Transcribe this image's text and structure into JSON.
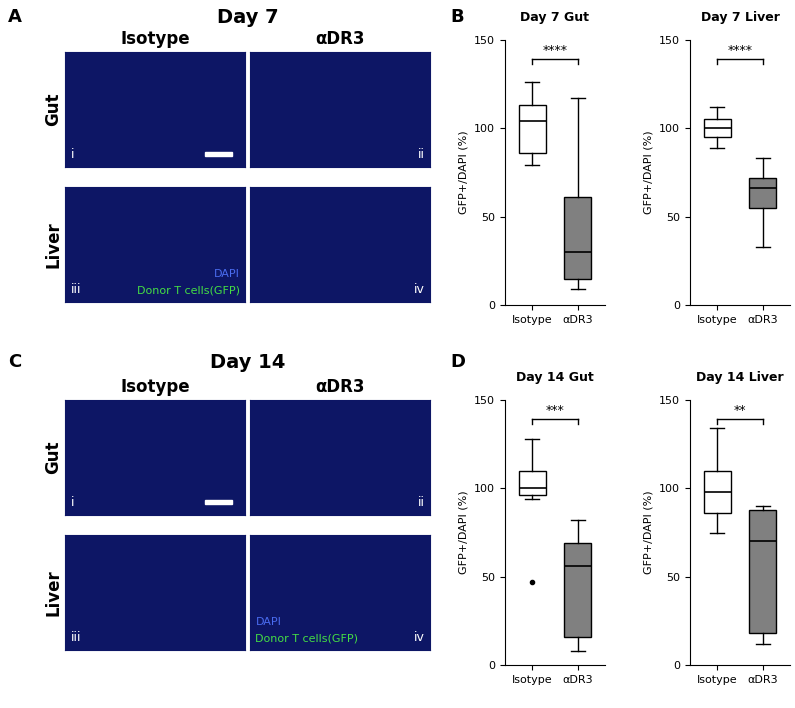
{
  "figure": {
    "image_panels": [
      {
        "letter": "A",
        "title": "Day 7",
        "columns": [
          "Isotype",
          "αDR3"
        ],
        "rows": [
          "Gut",
          "Liver"
        ],
        "images": [
          "i",
          "ii",
          "iii",
          "iv"
        ],
        "legend_image": "iii",
        "legend": [
          {
            "text": "DAPI",
            "color": "#4a6cf0"
          },
          {
            "text": "Donor T cells(GFP)",
            "color": "#44dd44"
          }
        ]
      },
      {
        "letter": "C",
        "title": "Day 14",
        "columns": [
          "Isotype",
          "αDR3"
        ],
        "rows": [
          "Gut",
          "Liver"
        ],
        "images": [
          "i",
          "ii",
          "iii",
          "iv"
        ],
        "legend_image": "iv",
        "legend": [
          {
            "text": "DAPI",
            "color": "#4a6cf0"
          },
          {
            "text": "Donor T cells(GFP)",
            "color": "#44dd44"
          }
        ]
      }
    ],
    "chart_panel_letters": [
      "B",
      "D"
    ]
  },
  "chart_data": [
    {
      "type": "box",
      "title": "Day 7 Gut",
      "categories": [
        "Isotype",
        "αDR3"
      ],
      "y_label": "GFP+/DAPI (%)",
      "ylim": [
        0,
        150
      ],
      "yticks": [
        0,
        50,
        100,
        150
      ],
      "colors": [
        "#ffffff",
        "#808080"
      ],
      "annotation": "****",
      "stats": [
        {
          "whislo": 79,
          "q1": 86,
          "med": 104,
          "q3": 113,
          "whishi": 126,
          "fliers": []
        },
        {
          "whislo": 9,
          "q1": 15,
          "med": 30,
          "q3": 61,
          "whishi": 117,
          "fliers": []
        }
      ]
    },
    {
      "type": "box",
      "title": "Day 7 Liver",
      "categories": [
        "Isotype",
        "αDR3"
      ],
      "y_label": "GFP+/DAPI (%)",
      "ylim": [
        0,
        150
      ],
      "yticks": [
        0,
        50,
        100,
        150
      ],
      "colors": [
        "#ffffff",
        "#808080"
      ],
      "annotation": "****",
      "stats": [
        {
          "whislo": 89,
          "q1": 95,
          "med": 100,
          "q3": 105,
          "whishi": 112,
          "fliers": []
        },
        {
          "whislo": 33,
          "q1": 55,
          "med": 66,
          "q3": 72,
          "whishi": 83,
          "fliers": []
        }
      ]
    },
    {
      "type": "box",
      "title": "Day 14 Gut",
      "categories": [
        "Isotype",
        "αDR3"
      ],
      "y_label": "GFP+/DAPI (%)",
      "ylim": [
        0,
        150
      ],
      "yticks": [
        0,
        50,
        100,
        150
      ],
      "colors": [
        "#ffffff",
        "#808080"
      ],
      "annotation": "***",
      "stats": [
        {
          "whislo": 94,
          "q1": 96,
          "med": 100,
          "q3": 110,
          "whishi": 128,
          "fliers": [
            47
          ]
        },
        {
          "whislo": 8,
          "q1": 16,
          "med": 56,
          "q3": 69,
          "whishi": 82,
          "fliers": []
        }
      ]
    },
    {
      "type": "box",
      "title": "Day 14 Liver",
      "categories": [
        "Isotype",
        "αDR3"
      ],
      "y_label": "GFP+/DAPI (%)",
      "ylim": [
        0,
        150
      ],
      "yticks": [
        0,
        50,
        100,
        150
      ],
      "colors": [
        "#ffffff",
        "#808080"
      ],
      "annotation": "**",
      "stats": [
        {
          "whislo": 75,
          "q1": 86,
          "med": 98,
          "q3": 110,
          "whishi": 134,
          "fliers": []
        },
        {
          "whislo": 12,
          "q1": 18,
          "med": 70,
          "q3": 88,
          "whishi": 90,
          "fliers": []
        }
      ]
    }
  ]
}
